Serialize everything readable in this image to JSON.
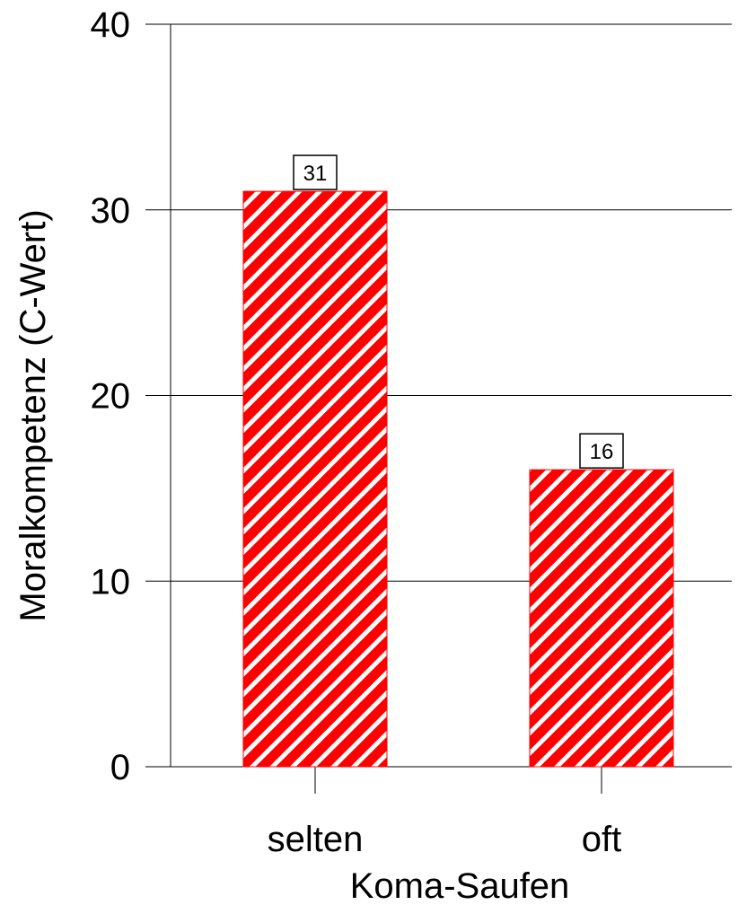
{
  "chart_data": {
    "type": "bar",
    "title": "",
    "xlabel": "Koma-Saufen",
    "ylabel": "Moralkompetenz (C-Wert)",
    "categories": [
      "selten",
      "oft"
    ],
    "values": [
      31,
      16
    ],
    "data_labels": [
      "31",
      "16"
    ],
    "ylim": [
      0,
      40
    ],
    "yticks": [
      0,
      10,
      20,
      30,
      40
    ],
    "ytick_labels": [
      "0",
      "10",
      "20",
      "30",
      "40"
    ],
    "grid": "horizontal",
    "bar_color": "#ff0000",
    "bar_pattern": "diagonal-white-stripes"
  }
}
